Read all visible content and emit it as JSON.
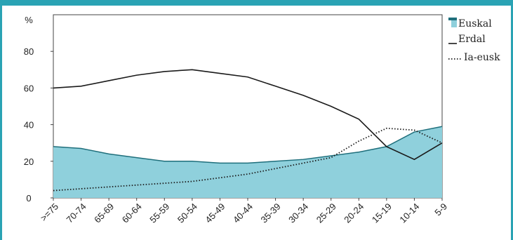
{
  "colors": {
    "area_fill": "#8fd0dc",
    "area_edge": "#1f6f7c",
    "line": "#1a1a1a",
    "frame": "#2aa3b4"
  },
  "chart_data": {
    "type": "area",
    "categories": [
      ">=75",
      "70-74",
      "65-69",
      "60-64",
      "55-59",
      "50-54",
      "45-49",
      "40-44",
      "35-39",
      "30-34",
      "25-29",
      "20-24",
      "15-19",
      "10-14",
      "5-9"
    ],
    "y_unit_label": "%",
    "yticks": [
      0,
      20,
      40,
      60,
      80
    ],
    "ylim": [
      0,
      100
    ],
    "grid": false,
    "legend_position": "right",
    "series": [
      {
        "name": "Euskal",
        "type": "area",
        "values": [
          28,
          27,
          24,
          22,
          20,
          20,
          19,
          19,
          20,
          21,
          23,
          25,
          28,
          36,
          39
        ]
      },
      {
        "name": "Erdal",
        "type": "line",
        "style": "solid",
        "values": [
          60,
          61,
          64,
          67,
          69,
          70,
          68,
          66,
          61,
          56,
          50,
          43,
          28,
          21,
          30
        ]
      },
      {
        "name": "Ia-eusk",
        "type": "line",
        "style": "dotted",
        "values": [
          4,
          5,
          6,
          7,
          8,
          9,
          11,
          13,
          16,
          19,
          22,
          31,
          38,
          37,
          30
        ]
      }
    ]
  }
}
